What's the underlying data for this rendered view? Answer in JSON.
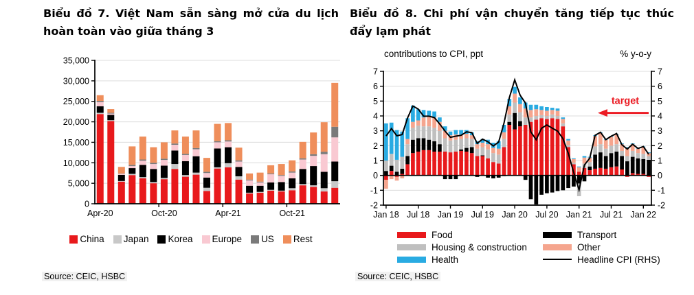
{
  "left_panel": {
    "title": "Biểu đồ 7. Việt Nam sẵn sàng mở cửa du lịch hoàn toàn vào giữa tháng 3",
    "source": "Source: CEIC, HSBC"
  },
  "right_panel": {
    "title": "Biểu đồ 8. Chi phí vận chuyển tăng tiếp tục thúc đẩy lạm phát",
    "axis_title_left": "contributions to CPI, ppt",
    "axis_title_right": "% y-o-y",
    "source": "Source: CEIC, HSBC"
  },
  "chart_data": [
    {
      "type": "bar",
      "stacked": true,
      "title": "Biểu đồ 7. Việt Nam sẵn sàng mở cửa du lịch hoàn toàn vào giữa tháng 3",
      "ylim": [
        0,
        35000
      ],
      "grid": true,
      "legend_position": "bottom",
      "categories": [
        "Apr-20",
        "May-20",
        "Jun-20",
        "Jul-20",
        "Aug-20",
        "Sep-20",
        "Oct-20",
        "Nov-20",
        "Dec-20",
        "Jan-21",
        "Feb-21",
        "Mar-21",
        "Apr-21",
        "May-21",
        "Jun-21",
        "Jul-21",
        "Aug-21",
        "Sep-21",
        "Oct-21",
        "Nov-21",
        "Dec-21",
        "Jan-22",
        "Feb-22"
      ],
      "series": [
        {
          "name": "China",
          "color": "#e8191c",
          "values": [
            21900,
            20200,
            5400,
            7000,
            6200,
            5000,
            6000,
            8500,
            6600,
            7100,
            3100,
            8600,
            8900,
            5900,
            2500,
            2700,
            3200,
            3000,
            3300,
            4500,
            4100,
            3000,
            3900
          ]
        },
        {
          "name": "Japan",
          "color": "#c8c8c8",
          "values": [
            300,
            200,
            150,
            300,
            300,
            300,
            300,
            1200,
            400,
            500,
            800,
            300,
            1000,
            800,
            200,
            200,
            200,
            200,
            500,
            300,
            400,
            800,
            1600
          ]
        },
        {
          "name": "Korea",
          "color": "#000000",
          "values": [
            1600,
            1300,
            1500,
            1400,
            3000,
            3200,
            3000,
            3300,
            3400,
            4000,
            2500,
            4600,
            3900,
            2300,
            1700,
            1500,
            1800,
            2100,
            2400,
            3700,
            4700,
            4000,
            4800
          ]
        },
        {
          "name": "Europe",
          "color": "#f9c9d2",
          "values": [
            1000,
            300,
            250,
            500,
            1000,
            1200,
            1400,
            1400,
            1500,
            1700,
            1100,
            1500,
            1400,
            1300,
            1300,
            800,
            2000,
            1500,
            1400,
            2300,
            2500,
            4300,
            5900
          ]
        },
        {
          "name": "US",
          "color": "#7a7a7a",
          "values": [
            300,
            200,
            100,
            300,
            300,
            300,
            300,
            300,
            300,
            300,
            300,
            300,
            300,
            300,
            200,
            200,
            200,
            200,
            300,
            300,
            400,
            600,
            2600
          ]
        },
        {
          "name": "Rest",
          "color": "#ef8e5b",
          "values": [
            1400,
            900,
            1600,
            4500,
            5600,
            3800,
            4000,
            3200,
            4200,
            4300,
            3400,
            4200,
            4200,
            3100,
            1500,
            2200,
            2000,
            2700,
            2700,
            4000,
            5300,
            7200,
            10700
          ]
        }
      ],
      "yticks": [
        {
          "v": 0,
          "label": "0"
        },
        {
          "v": 5000,
          "label": "5,000"
        },
        {
          "v": 10000,
          "label": "10,000"
        },
        {
          "v": 15000,
          "label": "15,000"
        },
        {
          "v": 20000,
          "label": "20,000"
        },
        {
          "v": 25000,
          "label": "25,000"
        },
        {
          "v": 30000,
          "label": "30,000"
        },
        {
          "v": 35000,
          "label": "35,000"
        }
      ],
      "xticks": [
        {
          "i": 0,
          "label": "Apr-20"
        },
        {
          "i": 6,
          "label": "Oct-20"
        },
        {
          "i": 12,
          "label": "Apr-21"
        },
        {
          "i": 18,
          "label": "Oct-21"
        }
      ]
    },
    {
      "type": "bar+line",
      "stacked": true,
      "title": "Biểu đồ 8. Chi phí vận chuyển tăng tiếp tục thúc đẩy lạm phát",
      "xlabel_left_header": "contributions to CPI, ppt",
      "xlabel_right_header": "% y-o-y",
      "ylim": [
        -2,
        7
      ],
      "grid": true,
      "legend_position": "bottom",
      "categories": [
        "Jan 18",
        "Feb 18",
        "Mar 18",
        "Apr 18",
        "May 18",
        "Jun 18",
        "Jul 18",
        "Aug 18",
        "Sep 18",
        "Oct 18",
        "Nov 18",
        "Dec 18",
        "Jan 19",
        "Feb 19",
        "Mar 19",
        "Apr 19",
        "May 19",
        "Jun 19",
        "Jul 19",
        "Aug 19",
        "Sep 19",
        "Oct 19",
        "Nov 19",
        "Dec 19",
        "Jan 20",
        "Feb 20",
        "Mar 20",
        "Apr 20",
        "May 20",
        "Jun 20",
        "Jul 20",
        "Aug 20",
        "Sep 20",
        "Oct 20",
        "Nov 20",
        "Dec 20",
        "Jan 21",
        "Feb 21",
        "Mar 21",
        "Apr 21",
        "May 21",
        "Jun 21",
        "Jul 21",
        "Aug 21",
        "Sep 21",
        "Oct 21",
        "Nov 21",
        "Dec 21",
        "Jan 22",
        "Feb 22"
      ],
      "series": [
        {
          "name": "Food",
          "color": "#e8191c",
          "values": [
            -0.3,
            0.3,
            -0.1,
            0.1,
            0.75,
            1.5,
            1.6,
            1.7,
            1.7,
            1.6,
            1.6,
            1.6,
            1.55,
            1.6,
            1.65,
            1.6,
            1.5,
            1.3,
            1.3,
            1.15,
            0.9,
            0.8,
            1.9,
            3.4,
            3.1,
            3.3,
            3.4,
            3.6,
            3.75,
            3.85,
            3.8,
            3.85,
            3.8,
            3.3,
            1.9,
            0.75,
            0.25,
            0.5,
            0.35,
            0.45,
            0.5,
            0.45,
            0.55,
            0.6,
            0.4,
            -0.1,
            0.15,
            0.1,
            0.1,
            -0.1
          ]
        },
        {
          "name": "Transport",
          "color": "#000000",
          "values": [
            0.3,
            0.35,
            0.25,
            0.35,
            0.55,
            0.9,
            0.9,
            0.8,
            0.7,
            0.7,
            0.5,
            -0.25,
            -0.25,
            -0.25,
            0.1,
            0.25,
            0.4,
            -0.1,
            0.05,
            -0.15,
            -0.2,
            -0.15,
            -0.05,
            0.2,
            1.1,
            0.35,
            -0.3,
            -1.6,
            -1.95,
            -1.3,
            -1.2,
            -1.15,
            -1.05,
            -1.0,
            -0.85,
            -0.75,
            -0.55,
            -0.4,
            0.25,
            0.95,
            1.05,
            0.85,
            0.95,
            1.0,
            0.9,
            0.95,
            1.1,
            1.05,
            1.0,
            1.05
          ]
        },
        {
          "name": "Housing & construction",
          "color": "#bfbfbf",
          "values": [
            0.7,
            0.8,
            0.8,
            0.8,
            0.8,
            0.8,
            0.85,
            0.8,
            0.9,
            0.9,
            0.9,
            0.9,
            0.8,
            0.8,
            0.7,
            0.65,
            0.55,
            0.5,
            0.55,
            0.6,
            0.6,
            0.6,
            0.55,
            0.5,
            0.7,
            0.6,
            0.5,
            0.3,
            0.25,
            0.2,
            0.2,
            0.25,
            0.2,
            0.2,
            0.15,
            0.1,
            -0.85,
            0.3,
            0.3,
            0.55,
            0.55,
            0.5,
            0.5,
            0.5,
            0.35,
            0.35,
            0.4,
            0.35,
            0.35,
            0.25
          ]
        },
        {
          "name": "Other",
          "color": "#f5a58e",
          "values": [
            -0.6,
            -0.25,
            -0.25,
            -0.2,
            0.35,
            0.4,
            0.35,
            0.6,
            0.65,
            0.7,
            0.6,
            0.5,
            0.35,
            0.35,
            0.3,
            0.3,
            0.25,
            0.3,
            0.3,
            0.35,
            0.35,
            0.4,
            0.45,
            0.55,
            0.6,
            0.55,
            0.6,
            0.5,
            0.45,
            0.35,
            0.35,
            0.3,
            0.35,
            0.3,
            0.3,
            0.25,
            0.3,
            0.4,
            0.3,
            0.7,
            0.75,
            0.6,
            0.6,
            0.65,
            0.45,
            0.55,
            0.45,
            0.3,
            0.45,
            0.2
          ]
        },
        {
          "name": "Health",
          "color": "#29abe2",
          "values": [
            2.5,
            2.1,
            2.0,
            1.7,
            1.4,
            1.1,
            0.75,
            0.5,
            0.4,
            0.4,
            0.3,
            0.3,
            0.25,
            0.3,
            0.3,
            0.25,
            0.2,
            0.2,
            0.25,
            0.3,
            0.35,
            0.5,
            0.5,
            0.5,
            0.45,
            0.45,
            0.4,
            0.35,
            0.3,
            0.25,
            0.25,
            0.15,
            0.15,
            0.1,
            0.1,
            0.05,
            0.05,
            0.1,
            0.05,
            0.05,
            0.05,
            0.05,
            0.05,
            0.05,
            0.05,
            0.05,
            0.05,
            0.05,
            0.05,
            0.05
          ]
        }
      ],
      "line": {
        "name": "Headline CPI (RHS)",
        "color": "#000000",
        "values": [
          2.65,
          3.15,
          2.66,
          2.75,
          3.86,
          4.67,
          4.46,
          3.98,
          3.98,
          3.89,
          3.46,
          2.98,
          2.56,
          2.64,
          2.7,
          2.93,
          2.88,
          2.16,
          2.44,
          2.26,
          1.98,
          2.24,
          3.52,
          5.23,
          6.43,
          5.4,
          4.87,
          2.93,
          2.4,
          3.17,
          3.39,
          3.18,
          2.98,
          2.47,
          1.48,
          0.19,
          -0.97,
          0.7,
          1.16,
          2.7,
          2.9,
          2.41,
          2.64,
          2.82,
          2.06,
          1.77,
          2.1,
          1.81,
          1.94,
          1.42
        ]
      },
      "annotation": {
        "text": "target",
        "color": "#ec1c24",
        "value": 4.2
      },
      "yticks": [
        {
          "v": -2,
          "label": "-2"
        },
        {
          "v": -1,
          "label": "-1"
        },
        {
          "v": 0,
          "label": "0"
        },
        {
          "v": 1,
          "label": "1"
        },
        {
          "v": 2,
          "label": "2"
        },
        {
          "v": 3,
          "label": "3"
        },
        {
          "v": 4,
          "label": "4"
        },
        {
          "v": 5,
          "label": "5"
        },
        {
          "v": 6,
          "label": "6"
        },
        {
          "v": 7,
          "label": "7"
        }
      ],
      "xticks": [
        {
          "i": 0,
          "label": "Jan 18"
        },
        {
          "i": 6,
          "label": "Jul 18"
        },
        {
          "i": 12,
          "label": "Jan 19"
        },
        {
          "i": 18,
          "label": "Jul 19"
        },
        {
          "i": 24,
          "label": "Jan 20"
        },
        {
          "i": 30,
          "label": "Jul 20"
        },
        {
          "i": 36,
          "label": "Jan 21"
        },
        {
          "i": 42,
          "label": "Jul 21"
        },
        {
          "i": 48,
          "label": "Jan 22"
        }
      ]
    }
  ]
}
